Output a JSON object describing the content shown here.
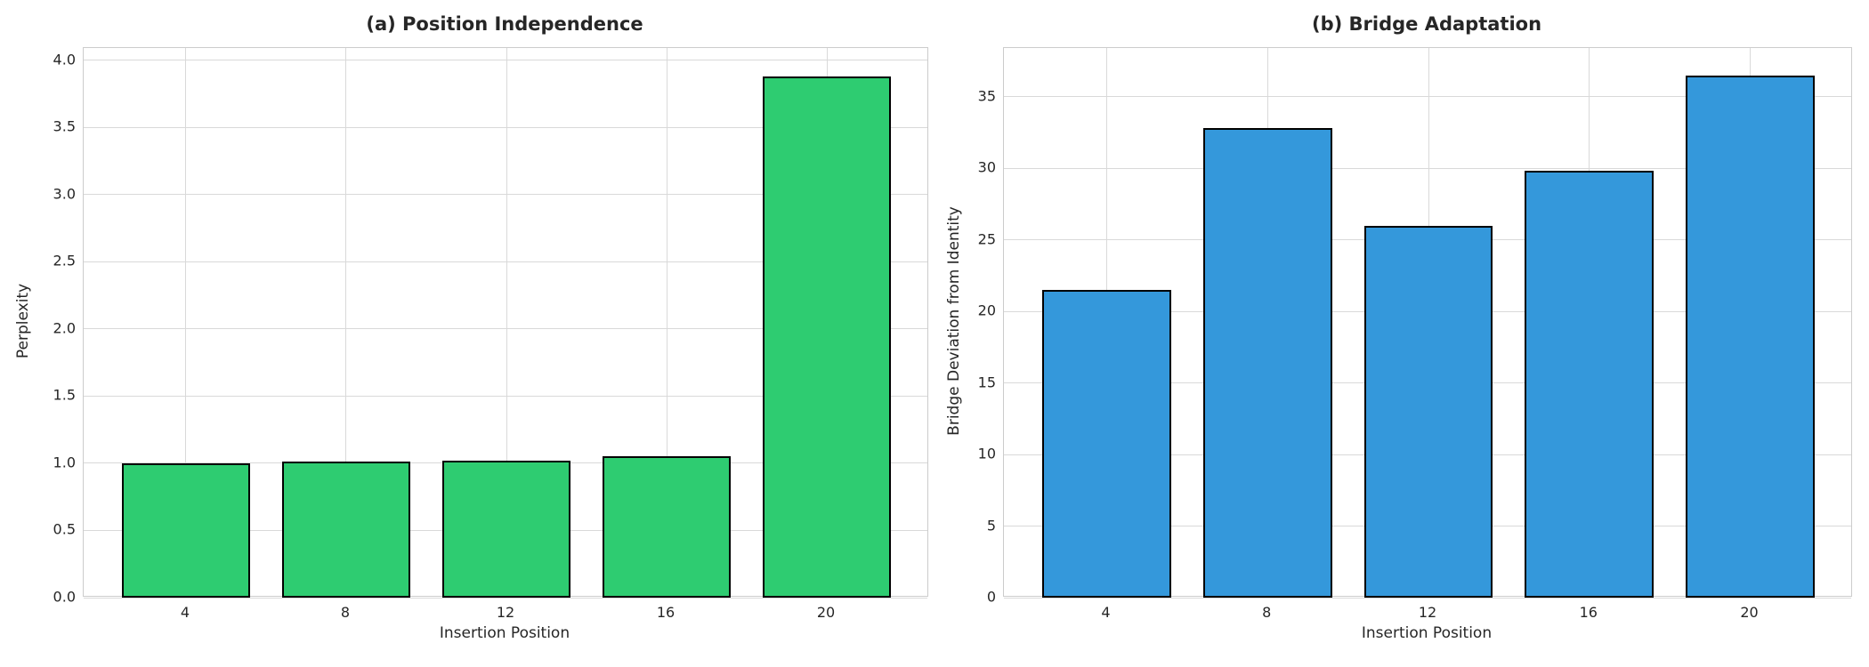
{
  "figure": {
    "background": "#ffffff",
    "text_color": "#262626",
    "grid_color": "#d9d9d9",
    "spine_color": "#cccccc",
    "bar_edge_color": "#000000"
  },
  "chart_data": [
    {
      "id": "position-independence",
      "type": "bar",
      "title": "(a) Position Independence",
      "xlabel": "Insertion Position",
      "ylabel": "Perplexity",
      "categories": [
        "4",
        "8",
        "12",
        "16",
        "20"
      ],
      "values": [
        1.0,
        1.01,
        1.02,
        1.05,
        3.88
      ],
      "bar_color": "#2ecc71",
      "ylim": [
        0,
        4.09
      ],
      "yticks": [
        0.0,
        0.5,
        1.0,
        1.5,
        2.0,
        2.5,
        3.0,
        3.5,
        4.0
      ],
      "ytick_labels": [
        "0.0",
        "0.5",
        "1.0",
        "1.5",
        "2.0",
        "2.5",
        "3.0",
        "3.5",
        "4.0"
      ],
      "grid": true,
      "legend": "none"
    },
    {
      "id": "bridge-adaptation",
      "type": "bar",
      "title": "(b) Bridge Adaptation",
      "xlabel": "Insertion Position",
      "ylabel": "Bridge Deviation from Identity",
      "categories": [
        "4",
        "8",
        "12",
        "16",
        "20"
      ],
      "values": [
        21.5,
        32.8,
        26.0,
        29.8,
        36.5
      ],
      "bar_color": "#3498db",
      "ylim": [
        0,
        38.4
      ],
      "yticks": [
        0,
        5,
        10,
        15,
        20,
        25,
        30,
        35
      ],
      "ytick_labels": [
        "0",
        "5",
        "10",
        "15",
        "20",
        "25",
        "30",
        "35"
      ],
      "grid": true,
      "legend": "none"
    }
  ]
}
